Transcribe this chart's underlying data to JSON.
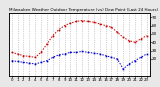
{
  "title": "Milwaukee Weather Outdoor Temperature (vs) Dew Point (Last 24 Hours)",
  "title_fontsize": 3.0,
  "bg_color": "#e8e8e8",
  "plot_bg": "#ffffff",
  "temp_color": "#cc0000",
  "dew_color": "#0000cc",
  "temp_x": [
    0,
    1,
    2,
    3,
    4,
    5,
    6,
    7,
    8,
    9,
    10,
    11,
    12,
    13,
    14,
    15,
    16,
    17,
    18,
    19,
    20,
    21,
    22,
    23
  ],
  "temp_y": [
    28,
    26,
    24,
    23,
    22,
    28,
    38,
    48,
    55,
    60,
    63,
    65,
    66,
    65,
    64,
    62,
    60,
    58,
    52,
    46,
    42,
    40,
    44,
    48
  ],
  "dew_x": [
    0,
    1,
    2,
    3,
    4,
    5,
    6,
    7,
    8,
    9,
    10,
    11,
    12,
    13,
    14,
    15,
    16,
    17,
    18,
    19,
    20,
    21,
    22,
    23
  ],
  "dew_y": [
    18,
    17,
    16,
    15,
    14,
    16,
    18,
    22,
    25,
    26,
    28,
    28,
    29,
    28,
    27,
    26,
    24,
    22,
    20,
    8,
    14,
    18,
    22,
    26
  ],
  "ylim_min": 0,
  "ylim_max": 75,
  "ylabel_fontsize": 3.0,
  "xlabel_fontsize": 2.8,
  "right_yticks": [
    20,
    30,
    40,
    50,
    60,
    70
  ],
  "right_ylabels": [
    "20",
    "30",
    "40",
    "50",
    "60",
    "70"
  ],
  "grid_color": "#aaaaaa",
  "grid_x": [
    0,
    1,
    2,
    3,
    4,
    5,
    6,
    7,
    8,
    9,
    10,
    11,
    12,
    13,
    14,
    15,
    16,
    17,
    18,
    19,
    20,
    21,
    22,
    23
  ]
}
